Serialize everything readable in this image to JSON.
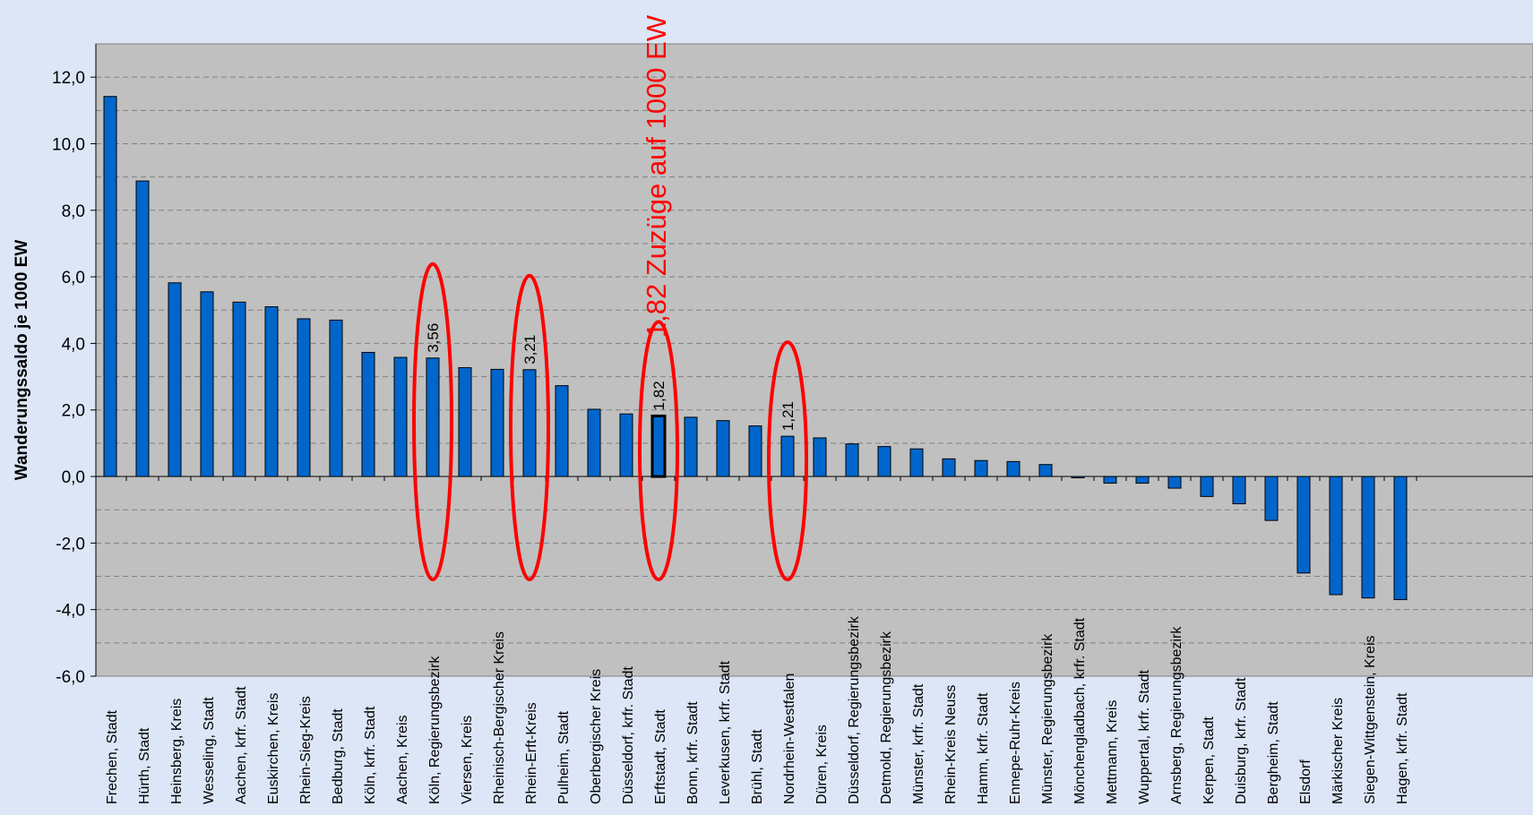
{
  "chart_data": {
    "type": "bar",
    "title": "",
    "xlabel": "",
    "ylabel": "Wanderungssaldo je 1000 EW",
    "ylim": [
      -6,
      13
    ],
    "y_ticks": [
      "12,0",
      "10,0",
      "8,0",
      "6,0",
      "4,0",
      "2,0",
      "0,0",
      "-2,0",
      "-4,0",
      "-6,0"
    ],
    "grid": true,
    "legend": "none",
    "bar_color": "#0066cc",
    "plot_background": "#c0c0c0",
    "highlight_color": "#ff0000",
    "categories": [
      "Frechen, Stadt",
      "Hürth, Stadt",
      "Heinsberg, Kreis",
      "Wesseling, Stadt",
      "Aachen, krfr. Stadt",
      "Euskirchen, Kreis",
      "Rhein-Sieg-Kreis",
      "Bedburg, Stadt",
      "Köln, krfr. Stadt",
      "Aachen, Kreis",
      "Köln, Regierungsbezirk",
      "Viersen, Kreis",
      "Rheinisch-Bergischer Kreis",
      "Rhein-Erft-Kreis",
      "Pulheim, Stadt",
      "Oberbergischer Kreis",
      "Düsseldorf, krfr. Stadt",
      "Erftstadt, Stadt",
      "Bonn, krfr. Stadt",
      "Leverkusen, krfr. Stadt",
      "Brühl, Stadt",
      "Nordrhein-Westfalen",
      "Düren, Kreis",
      "Düsseldorf, Regierungsbezirk",
      "Detmold, Regierungsbezirk",
      "Münster, krfr. Stadt",
      "Rhein-Kreis Neuss",
      "Hamm, krfr. Stadt",
      "Ennepe-Ruhr-Kreis",
      "Münster, Regierungsbezirk",
      "Mönchengladbach, krfr. Stadt",
      "Mettmann, Kreis",
      "Wuppertal, krfr. Stadt",
      "Arnsberg, Regierungsbezirk",
      "Kerpen, Stadt",
      "Duisburg, krfr. Stadt",
      "Bergheim, Stadt",
      "Elsdorf",
      "Märkischer Kreis",
      "Siegen-Wittgenstein, Kreis",
      "Hagen, krfr. Stadt"
    ],
    "values": [
      11.42,
      8.88,
      5.82,
      5.55,
      5.24,
      5.1,
      4.74,
      4.7,
      3.73,
      3.58,
      3.56,
      3.27,
      3.22,
      3.21,
      2.73,
      2.02,
      1.88,
      1.82,
      1.78,
      1.68,
      1.52,
      1.21,
      1.16,
      0.98,
      0.9,
      0.83,
      0.53,
      0.48,
      0.45,
      0.36,
      -0.04,
      -0.2,
      -0.2,
      -0.35,
      -0.6,
      -0.82,
      -1.32,
      -2.9,
      -3.55,
      -3.65,
      -3.7
    ],
    "annotations": [
      {
        "index": 10,
        "label": "3,56"
      },
      {
        "index": 13,
        "label": "3,21"
      },
      {
        "index": 17,
        "label": "1,82"
      },
      {
        "index": 21,
        "label": "1,21"
      }
    ],
    "callout": "1,82 Zuzüge auf 1000 EW",
    "emphasized_index": 17
  }
}
